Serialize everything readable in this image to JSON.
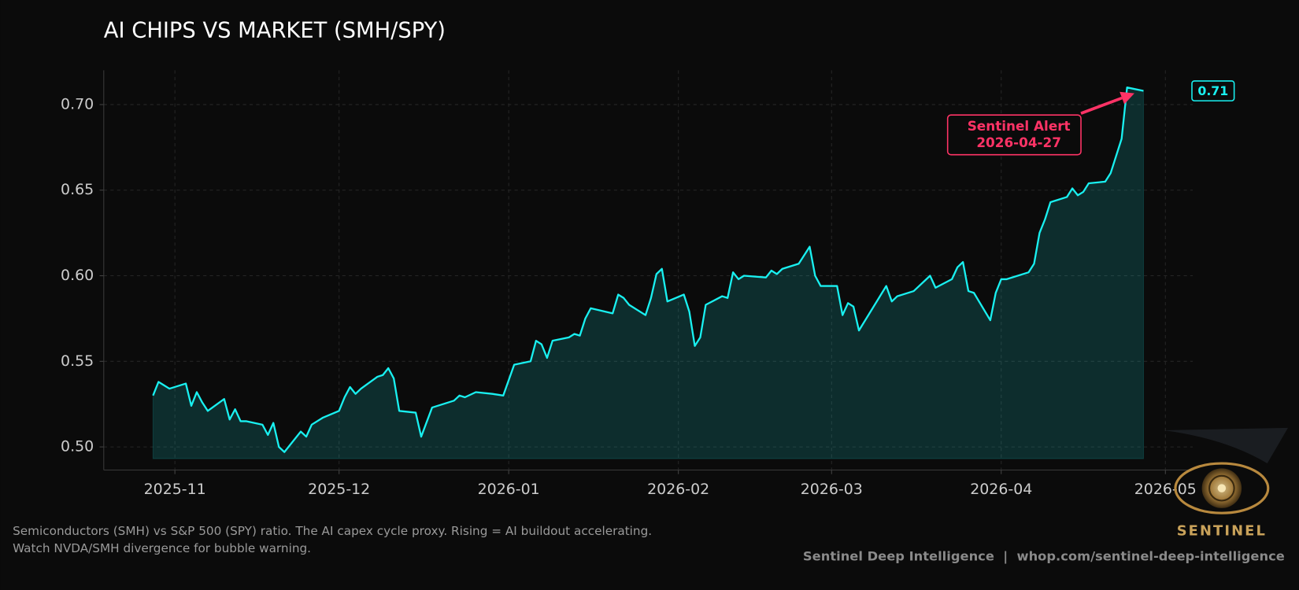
{
  "chart_data": {
    "type": "line",
    "title": "AI CHIPS VS MARKET (SMH/SPY)",
    "x": [
      "2025-10-28",
      "2025-10-29",
      "2025-10-30",
      "2025-10-31",
      "2025-11-03",
      "2025-11-04",
      "2025-11-05",
      "2025-11-06",
      "2025-11-07",
      "2025-11-10",
      "2025-11-11",
      "2025-11-12",
      "2025-11-13",
      "2025-11-14",
      "2025-11-17",
      "2025-11-18",
      "2025-11-19",
      "2025-11-20",
      "2025-11-21",
      "2025-11-24",
      "2025-11-25",
      "2025-11-26",
      "2025-11-28",
      "2025-12-01",
      "2025-12-02",
      "2025-12-03",
      "2025-12-04",
      "2025-12-05",
      "2025-12-08",
      "2025-12-09",
      "2025-12-10",
      "2025-12-11",
      "2025-12-12",
      "2025-12-15",
      "2025-12-16",
      "2025-12-18",
      "2025-12-22",
      "2025-12-23",
      "2025-12-24",
      "2025-12-26",
      "2025-12-29",
      "2025-12-31",
      "2026-01-02",
      "2026-01-05",
      "2026-01-06",
      "2026-01-07",
      "2026-01-08",
      "2026-01-09",
      "2026-01-12",
      "2026-01-13",
      "2026-01-14",
      "2026-01-15",
      "2026-01-16",
      "2026-01-20",
      "2026-01-21",
      "2026-01-22",
      "2026-01-23",
      "2026-01-26",
      "2026-01-27",
      "2026-01-28",
      "2026-01-29",
      "2026-01-30",
      "2026-02-02",
      "2026-02-03",
      "2026-02-04",
      "2026-02-05",
      "2026-02-06",
      "2026-02-09",
      "2026-02-10",
      "2026-02-11",
      "2026-02-12",
      "2026-02-13",
      "2026-02-17",
      "2026-02-18",
      "2026-02-19",
      "2026-02-20",
      "2026-02-23",
      "2026-02-25",
      "2026-02-26",
      "2026-02-27",
      "2026-03-02",
      "2026-03-03",
      "2026-03-04",
      "2026-03-05",
      "2026-03-06",
      "2026-03-11",
      "2026-03-12",
      "2026-03-13",
      "2026-03-16",
      "2026-03-19",
      "2026-03-20",
      "2026-03-23",
      "2026-03-24",
      "2026-03-25",
      "2026-03-26",
      "2026-03-27",
      "2026-03-30",
      "2026-03-31",
      "2026-04-01",
      "2026-04-02",
      "2026-04-06",
      "2026-04-07",
      "2026-04-08",
      "2026-04-09",
      "2026-04-10",
      "2026-04-13",
      "2026-04-14",
      "2026-04-15",
      "2026-04-16",
      "2026-04-17",
      "2026-04-20",
      "2026-04-21",
      "2026-04-23",
      "2026-04-24",
      "2026-04-27"
    ],
    "series": [
      {
        "name": "SMH/SPY",
        "color": "#19f0f0",
        "values": [
          0.53,
          0.538,
          0.536,
          0.534,
          0.537,
          0.524,
          0.532,
          0.526,
          0.521,
          0.528,
          0.516,
          0.522,
          0.515,
          0.515,
          0.513,
          0.507,
          0.514,
          0.5,
          0.497,
          0.509,
          0.506,
          0.513,
          0.517,
          0.521,
          0.529,
          0.535,
          0.531,
          0.534,
          0.541,
          0.542,
          0.546,
          0.54,
          0.521,
          0.52,
          0.506,
          0.523,
          0.527,
          0.53,
          0.529,
          0.532,
          0.531,
          0.53,
          0.548,
          0.55,
          0.562,
          0.56,
          0.552,
          0.562,
          0.564,
          0.566,
          0.565,
          0.575,
          0.581,
          0.578,
          0.589,
          0.587,
          0.583,
          0.577,
          0.587,
          0.601,
          0.604,
          0.585,
          0.589,
          0.579,
          0.559,
          0.564,
          0.583,
          0.588,
          0.587,
          0.602,
          0.598,
          0.6,
          0.599,
          0.603,
          0.601,
          0.604,
          0.607,
          0.617,
          0.6,
          0.594,
          0.594,
          0.577,
          0.584,
          0.582,
          0.568,
          0.594,
          0.585,
          0.588,
          0.591,
          0.6,
          0.593,
          0.598,
          0.605,
          0.608,
          0.591,
          0.59,
          0.574,
          0.59,
          0.598,
          0.598,
          0.602,
          0.607,
          0.625,
          0.633,
          0.643,
          0.646,
          0.651,
          0.647,
          0.649,
          0.654,
          0.655,
          0.66,
          0.68,
          0.71,
          0.708
        ]
      }
    ],
    "last_value_label": "0.71",
    "xlim": [
      "2025-10-19",
      "2026-05-06"
    ],
    "xticks": [
      "2025-11",
      "2025-12",
      "2026-01",
      "2026-02",
      "2026-03",
      "2026-04",
      "2026-05"
    ],
    "ylim": [
      0.4865,
      0.72
    ],
    "yticks": [
      {
        "value": 0.5,
        "label": "0.50"
      },
      {
        "value": 0.55,
        "label": "0.55"
      },
      {
        "value": 0.6,
        "label": "0.60"
      },
      {
        "value": 0.65,
        "label": "0.65"
      },
      {
        "value": 0.7,
        "label": "0.70"
      }
    ],
    "grid": true,
    "annotation": {
      "text": "Sentinel Alert",
      "date": "2026-04-27",
      "color": "#ff3366"
    },
    "caption": [
      "Semiconductors (SMH) vs S&P 500 (SPY) ratio. The AI capex cycle proxy. Rising = AI buildout accelerating.",
      "Watch NVDA/SMH divergence for bubble warning."
    ],
    "credit": "Sentinel Deep Intelligence  |  whop.com/sentinel-deep-intelligence",
    "logo_text": "SENTINEL"
  }
}
